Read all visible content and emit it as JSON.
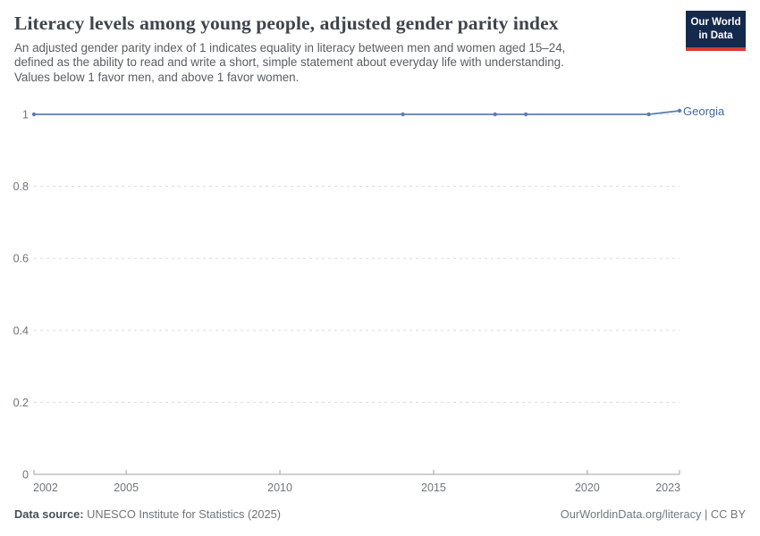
{
  "header": {
    "title": "Literacy levels among young people, adjusted gender parity index",
    "subtitle_lines": [
      "An adjusted gender parity index of 1 indicates equality in literacy between men and women aged 15–24,",
      "defined as the ability to read and write a short, simple statement about everyday life with understanding.",
      "Values below 1 favor men, and above 1 favor women."
    ]
  },
  "logo": {
    "line1": "Our World",
    "line2": "in Data"
  },
  "chart_data": {
    "type": "line",
    "x": [
      2002,
      2014,
      2017,
      2018,
      2022,
      2023
    ],
    "series": [
      {
        "name": "Georgia",
        "color": "#5b7eb2",
        "values": [
          1.0,
          1.0,
          1.0,
          1.0,
          1.0,
          1.01
        ]
      }
    ],
    "xlabel": "",
    "ylabel": "",
    "xlim": [
      2002,
      2023
    ],
    "ylim": [
      0,
      1
    ],
    "xticks": [
      2002,
      2005,
      2010,
      2015,
      2020,
      2023
    ],
    "yticks": [
      0,
      0.2,
      0.4,
      0.6,
      0.8,
      1
    ],
    "ytick_labels": [
      "0",
      "0.2",
      "0.4",
      "0.6",
      "0.8",
      "1"
    ],
    "grid": "horizontal-dashed",
    "legend_position": "end-of-line-label"
  },
  "footer": {
    "source_label": "Data source:",
    "source_value": " UNESCO Institute for Statistics (2025)",
    "credit": "OurWorldinData.org/literacy | CC BY"
  },
  "colors": {
    "series_line": "#5b7eb2",
    "series_label": "#45699b",
    "logo_navy": "#14294b",
    "logo_red": "#d53b34",
    "gridline": "#dcdcdc",
    "axis": "#a2a2a2"
  }
}
